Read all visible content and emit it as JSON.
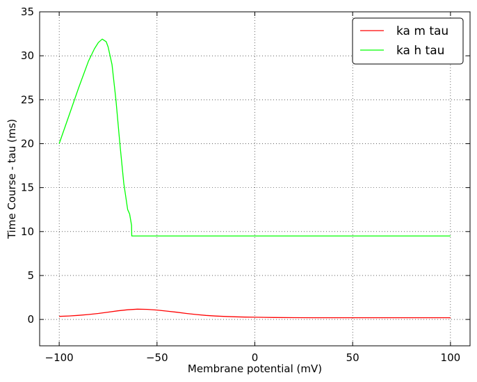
{
  "chart_data": {
    "type": "line",
    "xlabel": "Membrane potential (mV)",
    "ylabel": "Time Course - tau (ms)",
    "xlim": [
      -110,
      110
    ],
    "ylim": [
      -3,
      35
    ],
    "xticks": [
      -100,
      -50,
      0,
      50,
      100
    ],
    "xtick_labels": [
      "−100",
      "−50",
      "0",
      "50",
      "100"
    ],
    "yticks": [
      0,
      5,
      10,
      15,
      20,
      25,
      30,
      35
    ],
    "ytick_labels": [
      "0",
      "5",
      "10",
      "15",
      "20",
      "25",
      "30",
      "35"
    ],
    "grid": true,
    "legend_position": "top-right",
    "series": [
      {
        "name": "ka m tau",
        "color": "#ff0000",
        "x": [
          -100,
          -95,
          -90,
          -85,
          -80,
          -75,
          -70,
          -65,
          -60,
          -55,
          -50,
          -45,
          -40,
          -35,
          -30,
          -25,
          -20,
          -15,
          -10,
          -5,
          0,
          10,
          20,
          30,
          40,
          50,
          60,
          70,
          80,
          90,
          100
        ],
        "y": [
          0.35,
          0.4,
          0.47,
          0.56,
          0.68,
          0.83,
          0.98,
          1.1,
          1.17,
          1.15,
          1.07,
          0.95,
          0.82,
          0.68,
          0.56,
          0.46,
          0.39,
          0.34,
          0.3,
          0.27,
          0.25,
          0.22,
          0.21,
          0.2,
          0.2,
          0.2,
          0.2,
          0.2,
          0.2,
          0.2,
          0.2
        ]
      },
      {
        "name": "ka h tau",
        "color": "#00ff00",
        "x": [
          -100,
          -95,
          -90,
          -85,
          -82,
          -80,
          -78,
          -76,
          -75,
          -73,
          -71,
          -69,
          -67,
          -65,
          -64,
          -63,
          -62.9,
          -62.5,
          -50,
          -25,
          0,
          25,
          50,
          75,
          100
        ],
        "y": [
          20.0,
          23.2,
          26.4,
          29.4,
          30.8,
          31.5,
          31.9,
          31.6,
          31.0,
          29.0,
          25.0,
          20.0,
          15.5,
          12.5,
          12.0,
          10.7,
          9.5,
          9.5,
          9.5,
          9.5,
          9.5,
          9.5,
          9.5,
          9.5,
          9.5
        ]
      }
    ]
  }
}
